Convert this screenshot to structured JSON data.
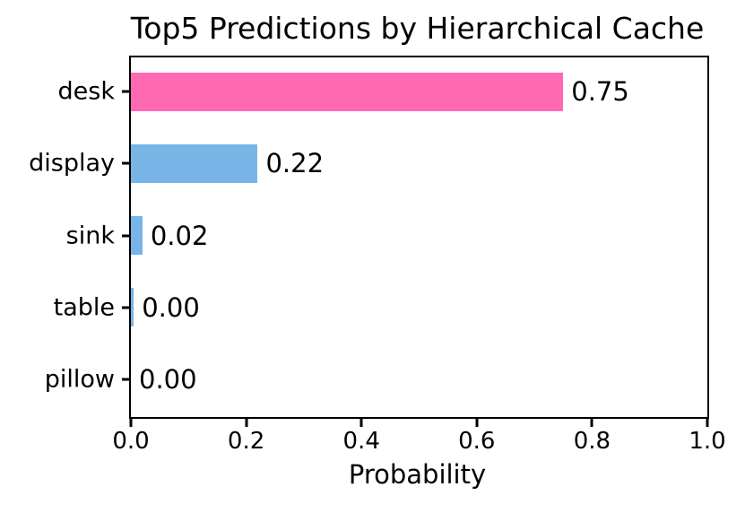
{
  "chart_data": {
    "type": "bar",
    "orientation": "horizontal",
    "title": "Top5 Predictions by Hierarchical Cache",
    "xlabel": "Probability",
    "categories": [
      "desk",
      "display",
      "sink",
      "table",
      "pillow"
    ],
    "values": [
      0.75,
      0.22,
      0.02,
      0.005,
      0.0
    ],
    "value_labels": [
      "0.75",
      "0.22",
      "0.02",
      "0.00",
      "0.00"
    ],
    "bar_colors": [
      "#FF69B4",
      "#78B4E6",
      "#78B4E6",
      "#78B4E6",
      "#78B4E6"
    ],
    "xlim": [
      0.0,
      1.0
    ],
    "xticks": [
      0.0,
      0.2,
      0.4,
      0.6,
      0.8,
      1.0
    ],
    "xtick_labels": [
      "0.0",
      "0.2",
      "0.4",
      "0.6",
      "0.8",
      "1.0"
    ],
    "grid": false,
    "legend": false
  },
  "colors": {
    "highlight_bar": "#FF69B4",
    "default_bar": "#78B4E6",
    "axis": "#000000",
    "text": "#000000",
    "background": "#FFFFFF"
  }
}
